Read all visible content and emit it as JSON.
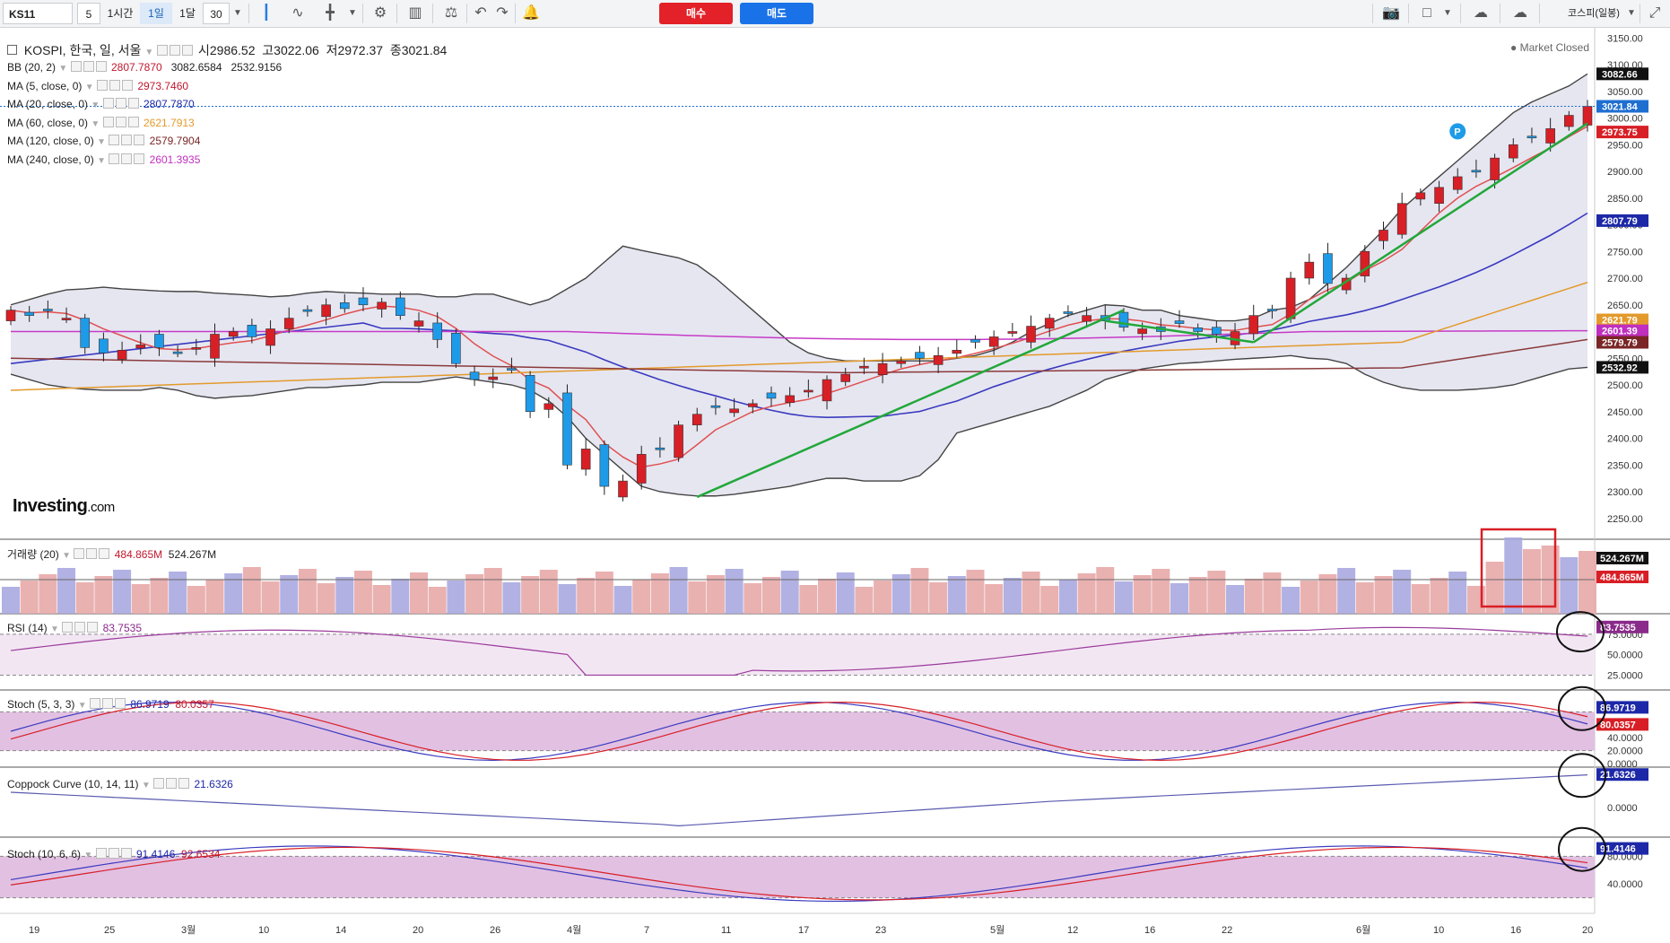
{
  "toolbar": {
    "symbol": "KS11",
    "interval_value": "5",
    "intervals": [
      "1시간",
      "1일",
      "1달"
    ],
    "selected_interval": "1일",
    "bars_value": "30",
    "buy_label": "매수",
    "sell_label": "매도",
    "index_select": "코스피(일봉)",
    "icons": [
      "candlestick-icon",
      "line-chart-icon",
      "drawing-tool-icon",
      "settings-icon",
      "indicator-icon",
      "compare-icon",
      "undo-icon",
      "redo-icon",
      "alert-icon",
      "camera-icon",
      "layout-icon",
      "cloud-load-icon",
      "cloud-save-icon",
      "fullscreen-icon"
    ]
  },
  "main": {
    "title": "KOSPI, 한국, 일, 서울",
    "ohlc": {
      "open_label": "시",
      "open": "2986.52",
      "high_label": "고",
      "high": "3022.06",
      "low_label": "저",
      "low": "2972.37",
      "close_label": "종",
      "close": "3021.84"
    },
    "status": "Market Closed",
    "watermark": "Investing",
    "watermark_suffix": ".com",
    "indicators": [
      {
        "label": "BB (20, 2)",
        "values": [
          "2807.7870",
          "3082.6584",
          "2532.9156"
        ],
        "colors": [
          "#c0182d",
          "#222",
          "#222"
        ]
      },
      {
        "label": "MA (5, close, 0)",
        "values": [
          "2973.7460"
        ],
        "colors": [
          "#c0182d"
        ]
      },
      {
        "label": "MA (20, close, 0)",
        "values": [
          "2807.7870"
        ],
        "colors": [
          "#1d28a8"
        ]
      },
      {
        "label": "MA (60, close, 0)",
        "values": [
          "2621.7913"
        ],
        "colors": [
          "#e39a2b"
        ]
      },
      {
        "label": "MA (120, close, 0)",
        "values": [
          "2579.7904"
        ],
        "colors": [
          "#7a2626"
        ]
      },
      {
        "label": "MA (240, close, 0)",
        "values": [
          "2601.3935"
        ],
        "colors": [
          "#c02fc0"
        ]
      }
    ],
    "price_axis": [
      "3150.00",
      "3100.00",
      "3050.00",
      "3000.00",
      "2950.00",
      "2900.00",
      "2850.00",
      "2800.00",
      "2750.00",
      "2700.00",
      "2650.00",
      "2600.00",
      "2550.00",
      "2500.00",
      "2450.00",
      "2400.00",
      "2350.00",
      "2300.00",
      "2250.00"
    ],
    "price_tags": [
      {
        "text": "3082.66",
        "value": 3082.66,
        "bg": "#111",
        "fg": "#fff"
      },
      {
        "text": "3021.84",
        "value": 3021.84,
        "bg": "#1f6fd1",
        "fg": "#fff"
      },
      {
        "text": "2973.75",
        "value": 2973.75,
        "bg": "#d81f26",
        "fg": "#fff"
      },
      {
        "text": "2807.79",
        "value": 2807.79,
        "bg": "#1d28a8",
        "fg": "#fff"
      },
      {
        "text": "2621.79",
        "value": 2621.79,
        "bg": "#e39a2b",
        "fg": "#fff"
      },
      {
        "text": "2601.39",
        "value": 2601.39,
        "bg": "#c02fc0",
        "fg": "#fff"
      },
      {
        "text": "2579.79",
        "value": 2579.79,
        "bg": "#7a2626",
        "fg": "#fff"
      },
      {
        "text": "2532.92",
        "value": 2532.92,
        "bg": "#111",
        "fg": "#fff"
      }
    ]
  },
  "volume": {
    "label": "거래량 (20)",
    "value1": "484.865M",
    "value2": "524.267M",
    "tag1": "524.267M",
    "tag2": "484.865M"
  },
  "rsi": {
    "label": "RSI (14)",
    "value": "83.7535",
    "axis": [
      "75.0000",
      "50.0000",
      "25.0000"
    ]
  },
  "stoch1": {
    "label": "Stoch (5, 3, 3)",
    "k": "86.9719",
    "d": "80.0357",
    "axis": [
      "60.0000",
      "40.0000",
      "20.0000",
      "0.0000"
    ]
  },
  "coppock": {
    "label": "Coppock Curve (10, 14, 11)",
    "value": "21.6326",
    "axis": [
      "0.0000"
    ]
  },
  "stoch2": {
    "label": "Stoch (10, 6, 6)",
    "k": "91.4146",
    "d": "92.6534",
    "axis": [
      "80.0000",
      "40.0000"
    ]
  },
  "time_axis": [
    "19",
    "25",
    "3월",
    "10",
    "14",
    "20",
    "26",
    "4월",
    "7",
    "11",
    "17",
    "23",
    "5월",
    "12",
    "16",
    "22",
    "6월",
    "10",
    "16",
    "20"
  ],
  "colors": {
    "up": "#d81f26",
    "down": "#1e9be8",
    "bb_fill": "#e3e3f0",
    "ma5": "#e05050",
    "ma20": "#3a3ac0",
    "ma60": "#e39a2b",
    "ma120": "#8a3a3a",
    "ma240": "#c63ac6",
    "trend": "#22a83a",
    "osc_fill": "#e2c0e2"
  },
  "chart_data": {
    "type": "candlestick",
    "title": "KOSPI, 한국, 일, 서울",
    "x": [
      "2020-02-19",
      "2020-02-25",
      "2020-03-03",
      "2020-03-10",
      "2020-03-14",
      "2020-03-20",
      "2020-03-26",
      "2020-04-01",
      "2020-04-07",
      "2020-04-11",
      "2020-04-17",
      "2020-04-23",
      "2020-05-01",
      "2020-05-12",
      "2020-05-16",
      "2020-05-22",
      "2020-06-01",
      "2020-06-10",
      "2020-06-16",
      "2020-06-20"
    ],
    "close": [
      2640,
      2620,
      2560,
      2560,
      2610,
      2630,
      2610,
      2460,
      2330,
      2470,
      2480,
      2520,
      2560,
      2620,
      2600,
      2620,
      2780,
      2880,
      2960,
      3021.84
    ],
    "last_ohlc": {
      "open": 2986.52,
      "high": 3022.06,
      "low": 2972.37,
      "close": 3021.84
    },
    "ylim": [
      2230,
      3160
    ],
    "volume_last": [
      484.865,
      524.267
    ],
    "rsi_last": 83.7535,
    "stoch_5_3_3_last": {
      "k": 86.9719,
      "d": 80.0357
    },
    "coppock_last": 21.6326,
    "stoch_10_6_6_last": {
      "k": 91.4146,
      "d": 92.6534
    }
  }
}
